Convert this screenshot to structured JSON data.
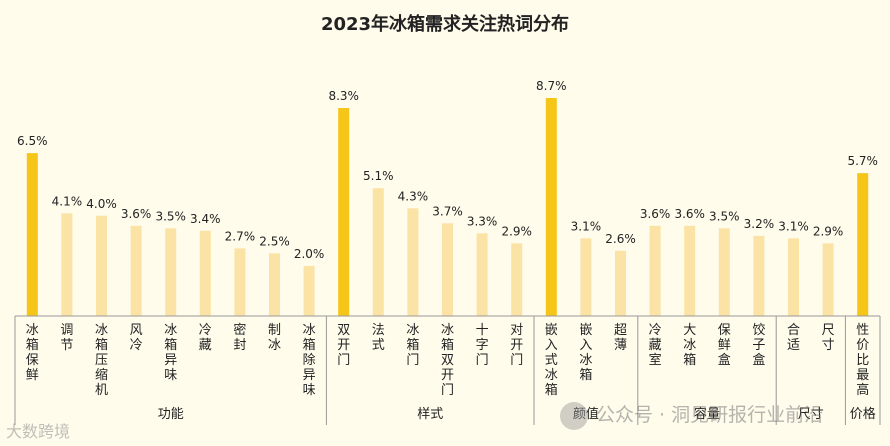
{
  "chart_data": {
    "type": "bar",
    "title": "2023年冰箱需求关注热词分布",
    "value_suffix": "%",
    "colors": {
      "highlight": "#f5c518",
      "normal": "#fbe3a6"
    },
    "categories": [
      "冰箱保鲜",
      "调节",
      "冰箱压缩机",
      "风冷",
      "冰箱异味",
      "冷藏",
      "密封",
      "制冰",
      "冰箱除异味",
      "双开门",
      "法式",
      "冰箱门",
      "冰箱双开门",
      "十字门",
      "对开门",
      "嵌入式冰箱",
      "嵌入冰箱",
      "超薄",
      "冷藏室",
      "大冰箱",
      "保鲜盒",
      "饺子盒",
      "合适",
      "尺寸",
      "性价比最高"
    ],
    "values": [
      6.5,
      4.1,
      4.0,
      3.6,
      3.5,
      3.4,
      2.7,
      2.5,
      2.0,
      8.3,
      5.1,
      4.3,
      3.7,
      3.3,
      2.9,
      8.7,
      3.1,
      2.6,
      3.6,
      3.6,
      3.5,
      3.2,
      3.1,
      2.9,
      5.7
    ],
    "value_labels": [
      "6.5%",
      "4.1%",
      "4.0%",
      "3.6%",
      "3.5%",
      "3.4%",
      "2.7%",
      "2.5%",
      "2.0%",
      "8.3%",
      "5.1%",
      "4.3%",
      "3.7%",
      "3.3%",
      "2.9%",
      "8.7%",
      "3.1%",
      "2.6%",
      "3.6%",
      "3.6%",
      "3.5%",
      "3.2%",
      "3.1%",
      "2.9%",
      "5.7%"
    ],
    "highlight": [
      true,
      false,
      false,
      false,
      false,
      false,
      false,
      false,
      false,
      true,
      false,
      false,
      false,
      false,
      false,
      true,
      false,
      false,
      false,
      false,
      false,
      false,
      false,
      false,
      true
    ],
    "groups": [
      {
        "name": "功能",
        "count": 9
      },
      {
        "name": "样式",
        "count": 6
      },
      {
        "name": "颜值",
        "count": 3
      },
      {
        "name": "容量",
        "count": 4
      },
      {
        "name": "尺寸",
        "count": 2
      },
      {
        "name": "价格",
        "count": 1
      }
    ],
    "ylim": [
      0,
      10
    ],
    "grid": false,
    "legend": "none"
  },
  "watermark": {
    "text": "公众号 · 洞见研报行业前沿"
  },
  "logo": {
    "text": "大数跨境"
  }
}
